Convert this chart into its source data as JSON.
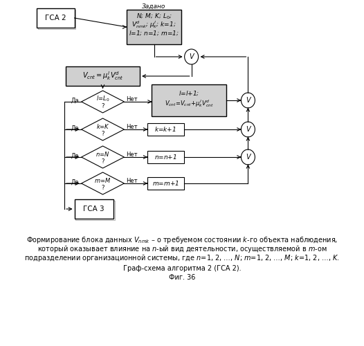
{
  "bg_color": "#ffffff",
  "caption_line1": "Формирование блока данных $V_{nmk}$ – о требуемом состоянии $k$-го объекта наблюдения,",
  "caption_line2": "который оказывает влияние на $n$-ый вид деятельности, осуществляемой в $m$-ом",
  "caption_line3": "подразделении организационной системы, где $n$=1, 2, …, $N$; $m$=1, 2, …, $M$; $k$=1, 2, …, $K$.",
  "caption_line4": "Граф-схема алгоритма 2 (ГСА 2).",
  "caption_line5": "Фиг. 36"
}
